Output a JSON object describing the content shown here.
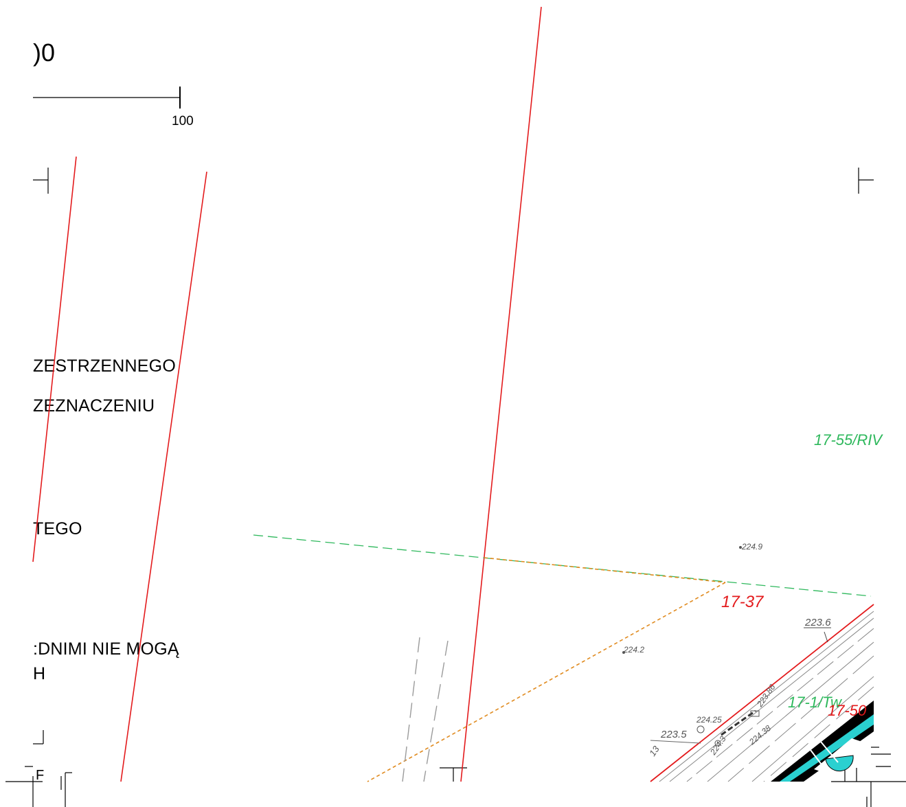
{
  "legend": {
    "scale_title": ")0",
    "scale_number": "100",
    "line1": "ZESTRZENNEGO",
    "line2": "ZEZNACZENIU",
    "line3": "TEGO",
    "line4": ":DNIMI NIE MOGĄ",
    "line5": "H",
    "line6": "F"
  },
  "map_labels": {
    "plot_17_55": "17-55/RIV",
    "plot_17_37": "17-37",
    "plot_17_1": "17-1/Tw",
    "plot_17_50": "17-50",
    "elev_224_9": "224.9",
    "elev_224_2": "224.2",
    "elev_223_6": "223.6",
    "elev_223_5": "223.5",
    "elev_224_25": "224.25",
    "elev_223_86": "223.86",
    "elev_224_38": "224.38",
    "elev_224_3": "224.3",
    "small_13": "13"
  },
  "colors": {
    "boundary_red": "#e31a1c",
    "plan_green": "#2eb85c",
    "dashed_orange": "#e08a1e",
    "road_grey": "#9a9a9a",
    "cyan_fill": "#2ad0d0",
    "label_green": "#2eb85c",
    "label_red": "#e31a1c"
  }
}
